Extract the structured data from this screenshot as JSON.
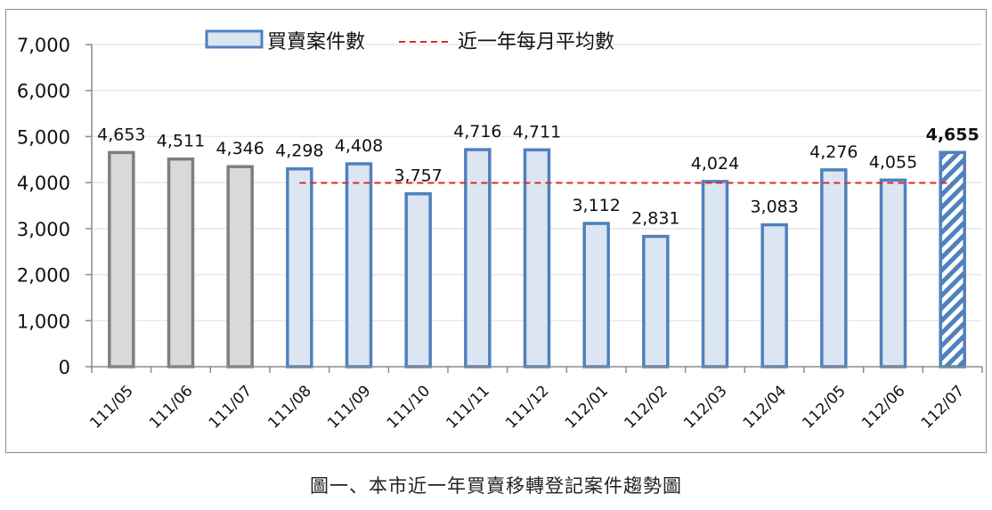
{
  "chart_data": {
    "type": "bar",
    "title": "",
    "caption": "圖一、本市近一年買賣移轉登記案件趨勢圖",
    "xlabel": "",
    "ylabel": "",
    "ylim": [
      0,
      7000
    ],
    "yticks": [
      0,
      1000,
      2000,
      3000,
      4000,
      5000,
      6000,
      7000
    ],
    "ytick_labels": [
      "0",
      "1,000",
      "2,000",
      "3,000",
      "4,000",
      "5,000",
      "6,000",
      "7,000"
    ],
    "grid": true,
    "legend_position": "top",
    "categories": [
      "111/05",
      "111/06",
      "111/07",
      "111/08",
      "111/09",
      "111/10",
      "111/11",
      "111/12",
      "112/01",
      "112/02",
      "112/03",
      "112/04",
      "112/05",
      "112/06",
      "112/07"
    ],
    "series": [
      {
        "name": "買賣案件數",
        "type": "bar",
        "values": [
          4653,
          4511,
          4346,
          4298,
          4408,
          3757,
          4716,
          4711,
          3112,
          2831,
          4024,
          3083,
          4276,
          4055,
          4655
        ],
        "labels": [
          "4,653",
          "4,511",
          "4,346",
          "4,298",
          "4,408",
          "3,757",
          "4,716",
          "4,711",
          "3,112",
          "2,831",
          "4,024",
          "3,083",
          "4,276",
          "4,055",
          "4,655"
        ],
        "styles": [
          "gray",
          "gray",
          "gray",
          "blue",
          "blue",
          "blue",
          "blue",
          "blue",
          "blue",
          "blue",
          "blue",
          "blue",
          "blue",
          "blue",
          "hatched"
        ]
      },
      {
        "name": "近一年每月平均數",
        "type": "line-dashed",
        "value": 3994,
        "x_range": [
          "111/08",
          "112/07"
        ]
      }
    ],
    "colors": {
      "gray_fill": "#d9d9d9",
      "gray_stroke": "#7f7f7f",
      "blue_fill": "#dce6f2",
      "blue_stroke": "#4f81bd",
      "average_line": "#e0262b",
      "grid": "#e8e8e8"
    }
  },
  "legend": {
    "bar_label": "買賣案件數",
    "line_label": "近一年每月平均數"
  },
  "caption": "圖一、本市近一年買賣移轉登記案件趨勢圖"
}
